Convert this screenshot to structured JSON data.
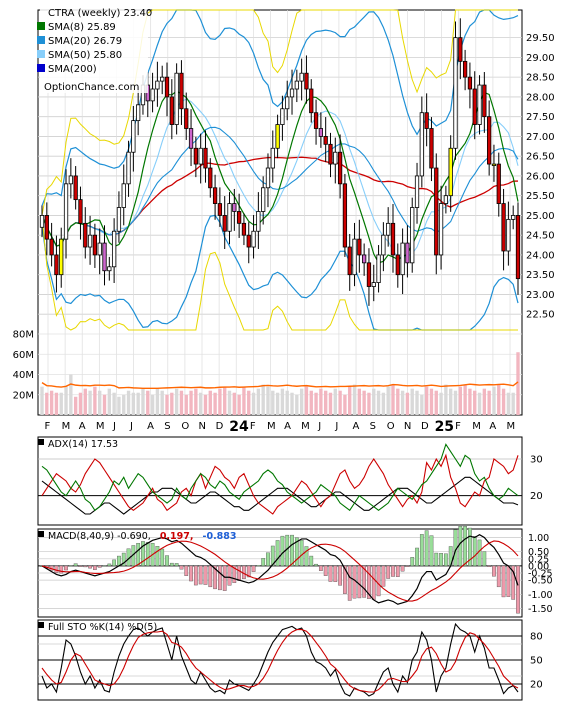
{
  "chart_data": [
    {
      "type": "candlestick",
      "legend": [
        {
          "label": "CTRA (weekly) 23.40",
          "color": ""
        },
        {
          "label": "SMA(8) 25.89",
          "color": "#007700"
        },
        {
          "label": "SMA(20) 26.79",
          "color": "#1e90d6"
        },
        {
          "label": "SMA(50) 25.80",
          "color": "#87cefa"
        },
        {
          "label": "SMA(200)",
          "color": "#0000cc"
        }
      ],
      "watermark": "OptionChance.com",
      "x_ticks": [
        "F",
        "M",
        "A",
        "M",
        "J",
        "J",
        "A",
        "S",
        "O",
        "N",
        "D",
        "24",
        "F",
        "M",
        "A",
        "M",
        "J",
        "J",
        "A",
        "S",
        "O",
        "N",
        "D",
        "25",
        "F",
        "M",
        "A",
        "M"
      ],
      "y_ticks": [
        "29.50",
        "29.00",
        "28.50",
        "28.00",
        "27.50",
        "27.00",
        "26.50",
        "26.00",
        "25.50",
        "25.00",
        "24.50",
        "24.00",
        "23.50",
        "23.00",
        "22.50"
      ],
      "ylim": [
        22.1,
        30.2
      ],
      "colors": {
        "up_fill": "#ffffff",
        "down_fill": "#cc0000",
        "up_highlight": "#ffff00",
        "down_highlight": "#cc66cc",
        "bb": "#1e90d6",
        "sma_red": "#cc0000",
        "outer_band": "#e8d800"
      },
      "closes": [
        25.0,
        24.4,
        24.0,
        23.5,
        24.4,
        25.8,
        26.0,
        25.4,
        24.8,
        24.2,
        24.5,
        24.0,
        24.3,
        23.6,
        23.7,
        24.6,
        25.2,
        25.8,
        26.6,
        27.4,
        27.8,
        28.3,
        27.9,
        28.2,
        28.4,
        28.5,
        28.0,
        27.3,
        28.6,
        27.7,
        27.2,
        26.7,
        26.3,
        26.7,
        26.2,
        25.7,
        25.3,
        25.0,
        24.6,
        25.3,
        25.1,
        24.8,
        24.5,
        24.2,
        24.6,
        25.1,
        25.7,
        26.2,
        26.7,
        27.3,
        27.7,
        28.0,
        28.2,
        28.4,
        28.6,
        28.2,
        27.6,
        27.2,
        27.0,
        26.8,
        26.3,
        26.6,
        25.8,
        24.2,
        23.5,
        24.4,
        24.0,
        23.8,
        23.2,
        23.3,
        24.0,
        24.5,
        24.8,
        24.0,
        23.5,
        24.3,
        23.8,
        25.2,
        26.0,
        27.6,
        27.2,
        26.2,
        24.0,
        25.3,
        25.5,
        26.7,
        29.5,
        28.9,
        28.5,
        28.2,
        27.3,
        28.3,
        27.5,
        26.3,
        26.3,
        25.3,
        24.1,
        24.9,
        25.0,
        23.4
      ]
    },
    {
      "type": "bar",
      "y_ticks": [
        "80M",
        "60M",
        "40M",
        "20M"
      ],
      "ylim": [
        0,
        80
      ],
      "values": [
        28,
        22,
        24,
        22,
        22,
        28,
        40,
        18,
        22,
        26,
        24,
        28,
        24,
        20,
        26,
        22,
        18,
        20,
        24,
        22,
        22,
        26,
        24,
        20,
        26,
        24,
        20,
        22,
        26,
        24,
        20,
        24,
        26,
        22,
        20,
        24,
        22,
        26,
        28,
        24,
        22,
        20,
        28,
        24,
        22,
        26,
        30,
        28,
        24,
        22,
        26,
        24,
        22,
        20,
        26,
        28,
        24,
        22,
        26,
        24,
        22,
        26,
        24,
        20,
        28,
        30,
        26,
        24,
        22,
        26,
        24,
        22,
        28,
        30,
        26,
        24,
        22,
        26,
        24,
        20,
        28,
        26,
        24,
        22,
        30,
        26,
        24,
        28,
        30,
        26,
        24,
        22,
        26,
        24,
        28,
        30,
        26,
        22,
        22,
        62
      ],
      "avg_color": "#ff6600",
      "avg_level": 30
    },
    {
      "type": "line",
      "label": "ADX(14) 17.53",
      "y_ticks": [
        "30",
        "20"
      ],
      "ylim": [
        12,
        36
      ],
      "series": [
        {
          "color": "#000000",
          "values": [
            24,
            23,
            22,
            21,
            20,
            19,
            18,
            17,
            16,
            15,
            15,
            16,
            17,
            18,
            18,
            17,
            16,
            15,
            16,
            17,
            18,
            19,
            20,
            21,
            21,
            22,
            22,
            22,
            21,
            20,
            19,
            18,
            18,
            19,
            20,
            21,
            21,
            20,
            19,
            18,
            17,
            17,
            16,
            16,
            17,
            18,
            19,
            20,
            21,
            22,
            22,
            22,
            21,
            20,
            19,
            18,
            17,
            17,
            18,
            19,
            20,
            21,
            21,
            20,
            19,
            18,
            17,
            16,
            16,
            17,
            18,
            19,
            20,
            21,
            22,
            22,
            22,
            21,
            20,
            19,
            18,
            18,
            19,
            20,
            21,
            22,
            23,
            24,
            25,
            25,
            24,
            23,
            22,
            21,
            20,
            19,
            18,
            18,
            18,
            17.5
          ]
        },
        {
          "color": "#cc0000",
          "values": [
            20,
            22,
            24,
            26,
            25,
            24,
            22,
            21,
            23,
            26,
            28,
            30,
            29,
            27,
            25,
            23,
            21,
            19,
            17,
            16,
            17,
            18,
            20,
            22,
            19,
            18,
            16,
            17,
            18,
            21,
            22,
            20,
            24,
            26,
            22,
            25,
            28,
            27,
            25,
            24,
            22,
            25,
            26,
            23,
            20,
            18,
            17,
            16,
            15,
            17,
            18,
            19,
            20,
            22,
            24,
            23,
            21,
            19,
            17,
            19,
            20,
            23,
            26,
            27,
            24,
            22,
            23,
            25,
            28,
            30,
            28,
            26,
            23,
            21,
            19,
            17,
            19,
            20,
            18,
            21,
            29,
            27,
            30,
            28,
            31,
            25,
            22,
            18,
            17,
            19,
            21,
            20,
            24,
            25,
            30,
            29,
            28,
            26,
            27,
            31
          ]
        },
        {
          "color": "#007700",
          "values": [
            28,
            27,
            25,
            23,
            21,
            20,
            22,
            24,
            22,
            19,
            18,
            16,
            17,
            19,
            21,
            24,
            23,
            25,
            22,
            24,
            26,
            25,
            23,
            21,
            20,
            19,
            18,
            19,
            22,
            20,
            19,
            22,
            24,
            26,
            25,
            23,
            22,
            24,
            23,
            21,
            20,
            19,
            21,
            22,
            23,
            24,
            26,
            27,
            26,
            24,
            23,
            21,
            20,
            19,
            18,
            19,
            20,
            21,
            23,
            22,
            21,
            20,
            18,
            17,
            16,
            18,
            20,
            19,
            18,
            17,
            16,
            17,
            18,
            20,
            22,
            21,
            20,
            19,
            21,
            23,
            24,
            26,
            28,
            30,
            34,
            32,
            30,
            28,
            31,
            30,
            26,
            24,
            25,
            22,
            20,
            19,
            20,
            22,
            21,
            20
          ]
        }
      ]
    },
    {
      "type": "macd",
      "label": "MACD(8,40,9) -0.690,",
      "value_red": "0.197,",
      "value_blue": "-0.883",
      "y_ticks": [
        "1.00",
        "0.50",
        "0.25",
        "0.00",
        "-0.25",
        "-0.50",
        "-1.00",
        "-1.50"
      ],
      "ylim": [
        -1.8,
        1.3
      ],
      "macd": [
        0.0,
        -0.1,
        -0.2,
        -0.3,
        -0.35,
        -0.3,
        -0.2,
        -0.15,
        -0.2,
        -0.25,
        -0.3,
        -0.35,
        -0.3,
        -0.25,
        -0.2,
        -0.1,
        0.0,
        0.1,
        0.25,
        0.4,
        0.55,
        0.7,
        0.8,
        0.9,
        0.95,
        1.0,
        0.95,
        0.85,
        0.9,
        0.8,
        0.65,
        0.5,
        0.35,
        0.3,
        0.2,
        0.05,
        -0.1,
        -0.25,
        -0.4,
        -0.4,
        -0.45,
        -0.5,
        -0.55,
        -0.6,
        -0.55,
        -0.45,
        -0.3,
        -0.15,
        0.05,
        0.25,
        0.45,
        0.6,
        0.75,
        0.85,
        0.95,
        0.95,
        0.85,
        0.75,
        0.65,
        0.55,
        0.4,
        0.35,
        0.2,
        -0.1,
        -0.4,
        -0.5,
        -0.65,
        -0.8,
        -1.0,
        -1.2,
        -1.3,
        -1.25,
        -1.2,
        -1.25,
        -1.35,
        -1.3,
        -1.25,
        -1.05,
        -0.8,
        -0.4,
        -0.2,
        -0.2,
        -0.5,
        -0.4,
        -0.3,
        0.0,
        0.55,
        0.8,
        0.95,
        1.05,
        1.0,
        1.1,
        1.0,
        0.8,
        0.65,
        0.4,
        0.1,
        0.0,
        -0.2,
        -0.69
      ],
      "signal_color": "#cc0000",
      "hist_up": "#99dd99",
      "hist_down": "#ee99aa"
    },
    {
      "type": "line",
      "label": "Full STO %K(14) %D(5)",
      "y_ticks": [
        "80",
        "50",
        "20"
      ],
      "ylim": [
        0,
        100
      ],
      "series": [
        {
          "color": "#000000",
          "values": [
            30,
            15,
            20,
            10,
            40,
            75,
            70,
            55,
            35,
            20,
            30,
            15,
            25,
            12,
            10,
            35,
            55,
            70,
            80,
            88,
            90,
            85,
            80,
            85,
            88,
            90,
            70,
            50,
            80,
            55,
            40,
            25,
            20,
            35,
            25,
            15,
            10,
            12,
            8,
            25,
            20,
            18,
            15,
            12,
            20,
            30,
            45,
            60,
            72,
            80,
            88,
            90,
            92,
            88,
            90,
            80,
            60,
            48,
            45,
            40,
            30,
            38,
            20,
            8,
            5,
            15,
            12,
            10,
            5,
            8,
            22,
            35,
            40,
            20,
            10,
            30,
            22,
            50,
            60,
            85,
            75,
            50,
            10,
            30,
            40,
            70,
            95,
            88,
            85,
            80,
            60,
            80,
            65,
            40,
            40,
            25,
            8,
            15,
            18,
            10
          ]
        },
        {
          "color": "#cc0000",
          "values": [
            40,
            32,
            25,
            20,
            22,
            35,
            50,
            58,
            55,
            45,
            35,
            25,
            22,
            20,
            18,
            20,
            28,
            40,
            55,
            68,
            78,
            82,
            84,
            85,
            85,
            86,
            82,
            72,
            70,
            66,
            58,
            48,
            40,
            35,
            30,
            25,
            20,
            16,
            13,
            14,
            16,
            18,
            18,
            16,
            17,
            20,
            27,
            37,
            50,
            62,
            72,
            80,
            85,
            88,
            88,
            86,
            80,
            72,
            64,
            55,
            45,
            40,
            33,
            25,
            18,
            14,
            12,
            11,
            10,
            10,
            13,
            19,
            26,
            27,
            25,
            23,
            23,
            30,
            38,
            55,
            64,
            66,
            58,
            45,
            35,
            38,
            48,
            65,
            78,
            84,
            82,
            76,
            70,
            62,
            52,
            42,
            30,
            24,
            18,
            15
          ]
        }
      ]
    }
  ]
}
